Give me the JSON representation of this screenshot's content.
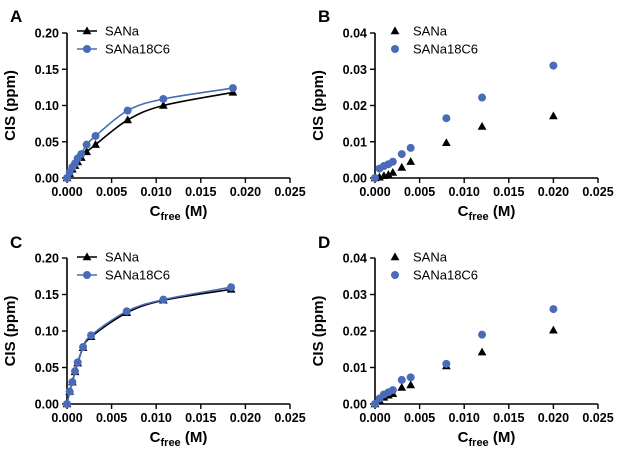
{
  "colors": {
    "SANa": "#000000",
    "SANa18C6": "#4a6bb7"
  },
  "chart_data": [
    {
      "panel": "A",
      "type": "line",
      "markers": true,
      "fit_curve": true,
      "xlabel_main": "C",
      "xlabel_sub": "free",
      "xlabel_unit": " (M)",
      "ylabel": "CIS (ppm)",
      "xlim": [
        0,
        0.025
      ],
      "ylim": [
        0,
        0.2
      ],
      "xticks": [
        "0.000",
        "0.005",
        "0.010",
        "0.015",
        "0.020",
        "0.025"
      ],
      "yticks": [
        "0.00",
        "0.05",
        "0.10",
        "0.15",
        "0.20"
      ],
      "grid": false,
      "legend": "top-left",
      "series": [
        {
          "name": "SANa",
          "marker": "triangle",
          "color_key": "SANa",
          "x": [
            0.0,
            0.0003,
            0.0006,
            0.0009,
            0.0012,
            0.0016,
            0.0022,
            0.0032,
            0.0068,
            0.0108,
            0.0186
          ],
          "y": [
            0.0,
            0.006,
            0.012,
            0.017,
            0.022,
            0.028,
            0.036,
            0.046,
            0.08,
            0.1,
            0.118
          ]
        },
        {
          "name": "SANa18C6",
          "marker": "circle",
          "color_key": "SANa18C6",
          "x": [
            0.0,
            0.0003,
            0.0006,
            0.0009,
            0.0012,
            0.0016,
            0.0022,
            0.0032,
            0.0068,
            0.0108,
            0.0186
          ],
          "y": [
            0.0,
            0.008,
            0.015,
            0.02,
            0.027,
            0.033,
            0.046,
            0.058,
            0.093,
            0.109,
            0.124
          ]
        }
      ]
    },
    {
      "panel": "B",
      "type": "scatter",
      "markers": true,
      "fit_curve": false,
      "xlabel_main": "C",
      "xlabel_sub": "free",
      "xlabel_unit": " (M)",
      "ylabel": "CIS (ppm)",
      "xlim": [
        0,
        0.025
      ],
      "ylim": [
        0,
        0.04
      ],
      "xticks": [
        "0.000",
        "0.005",
        "0.010",
        "0.015",
        "0.020",
        "0.025"
      ],
      "yticks": [
        "0.00",
        "0.01",
        "0.02",
        "0.03",
        "0.04"
      ],
      "grid": false,
      "legend": "top-left",
      "series": [
        {
          "name": "SANa",
          "marker": "triangle",
          "color_key": "SANa",
          "x": [
            0.0,
            0.0005,
            0.001,
            0.0015,
            0.002,
            0.003,
            0.004,
            0.008,
            0.012,
            0.02
          ],
          "y": [
            0.0,
            0.0002,
            0.0006,
            0.0009,
            0.0015,
            0.0029,
            0.0045,
            0.0097,
            0.0142,
            0.0171
          ]
        },
        {
          "name": "SANa18C6",
          "marker": "circle",
          "color_key": "SANa18C6",
          "x": [
            0.0,
            0.0005,
            0.001,
            0.0015,
            0.002,
            0.003,
            0.004,
            0.008,
            0.012,
            0.02
          ],
          "y": [
            0.0,
            0.0026,
            0.0033,
            0.0038,
            0.0045,
            0.0066,
            0.0083,
            0.0165,
            0.0222,
            0.031
          ]
        }
      ]
    },
    {
      "panel": "C",
      "type": "line",
      "markers": true,
      "fit_curve": true,
      "xlabel_main": "C",
      "xlabel_sub": "free",
      "xlabel_unit": " (M)",
      "ylabel": "CIS (ppm)",
      "xlim": [
        0,
        0.025
      ],
      "ylim": [
        0,
        0.2
      ],
      "xticks": [
        "0.000",
        "0.005",
        "0.010",
        "0.015",
        "0.020",
        "0.025"
      ],
      "yticks": [
        "0.00",
        "0.05",
        "0.10",
        "0.15",
        "0.20"
      ],
      "grid": false,
      "legend": "top-left",
      "series": [
        {
          "name": "SANa",
          "marker": "triangle",
          "color_key": "SANa",
          "x": [
            0.0,
            0.0003,
            0.0006,
            0.0009,
            0.0012,
            0.0018,
            0.0027,
            0.0067,
            0.0108,
            0.0184
          ],
          "y": [
            0.0,
            0.017,
            0.03,
            0.044,
            0.056,
            0.077,
            0.092,
            0.125,
            0.142,
            0.157
          ]
        },
        {
          "name": "SANa18C6",
          "marker": "circle",
          "color_key": "SANa18C6",
          "x": [
            0.0,
            0.0003,
            0.0006,
            0.0009,
            0.0012,
            0.0018,
            0.0027,
            0.0067,
            0.0108,
            0.0184
          ],
          "y": [
            0.0,
            0.017,
            0.03,
            0.045,
            0.057,
            0.078,
            0.094,
            0.127,
            0.143,
            0.16
          ]
        }
      ]
    },
    {
      "panel": "D",
      "type": "scatter",
      "markers": true,
      "fit_curve": false,
      "xlabel_main": "C",
      "xlabel_sub": "free",
      "xlabel_unit": " (M)",
      "ylabel": "CIS (ppm)",
      "xlim": [
        0,
        0.025
      ],
      "ylim": [
        0,
        0.04
      ],
      "xticks": [
        "0.000",
        "0.005",
        "0.010",
        "0.015",
        "0.020",
        "0.025"
      ],
      "yticks": [
        "0.00",
        "0.01",
        "0.02",
        "0.03",
        "0.04"
      ],
      "grid": false,
      "legend": "top-left",
      "series": [
        {
          "name": "SANa",
          "marker": "triangle",
          "color_key": "SANa",
          "x": [
            0.0,
            0.0005,
            0.001,
            0.0015,
            0.002,
            0.003,
            0.004,
            0.008,
            0.012,
            0.02
          ],
          "y": [
            0.0,
            0.001,
            0.0018,
            0.0024,
            0.0028,
            0.0045,
            0.0052,
            0.0104,
            0.0142,
            0.0202
          ]
        },
        {
          "name": "SANa18C6",
          "marker": "circle",
          "color_key": "SANa18C6",
          "x": [
            0.0,
            0.0005,
            0.001,
            0.0015,
            0.002,
            0.003,
            0.004,
            0.008,
            0.012,
            0.02
          ],
          "y": [
            0.0,
            0.0015,
            0.0026,
            0.0032,
            0.0038,
            0.0066,
            0.0073,
            0.011,
            0.019,
            0.026
          ]
        }
      ]
    }
  ]
}
